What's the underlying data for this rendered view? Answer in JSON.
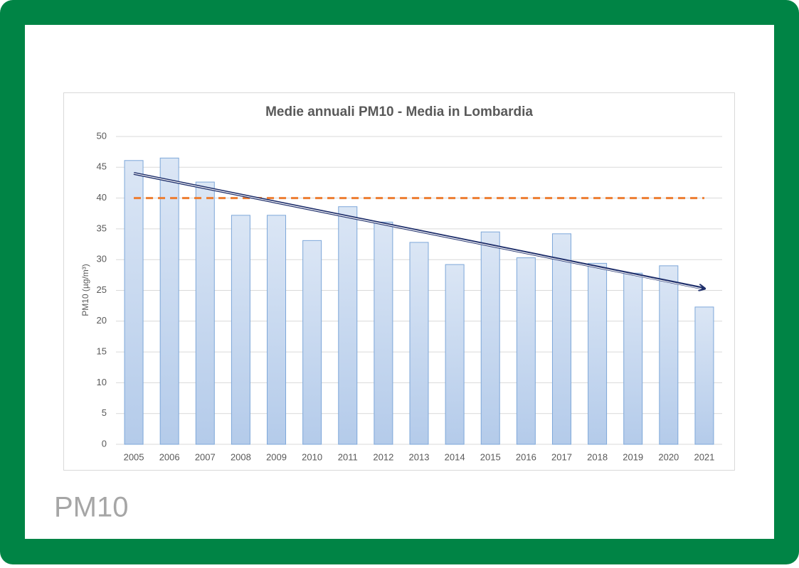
{
  "chart_data": {
    "type": "bar",
    "title": "Medie annuali PM10 - Media in Lombardia",
    "y_label": "PM10 (µg/m³)",
    "categories": [
      "2005",
      "2006",
      "2007",
      "2008",
      "2009",
      "2010",
      "2011",
      "2012",
      "2013",
      "2014",
      "2015",
      "2016",
      "2017",
      "2018",
      "2019",
      "2020",
      "2021"
    ],
    "values": [
      46.1,
      46.5,
      42.6,
      37.2,
      37.2,
      33.1,
      38.6,
      36.1,
      32.8,
      29.2,
      34.5,
      30.3,
      34.2,
      29.4,
      27.8,
      29.0,
      22.3
    ],
    "color": "#c5d7ef",
    "edge_color": "#7da7d9",
    "limit": 40,
    "limit_color": "#ed7d31",
    "trend": {
      "start": 44.0,
      "end": 25.3,
      "color": "#1f2f6b"
    },
    "ylim": [
      0,
      50
    ],
    "yticks": [
      0,
      5,
      10,
      15,
      20,
      25,
      30,
      35,
      40,
      45,
      50
    ],
    "grid": true
  },
  "caption": "PM10"
}
